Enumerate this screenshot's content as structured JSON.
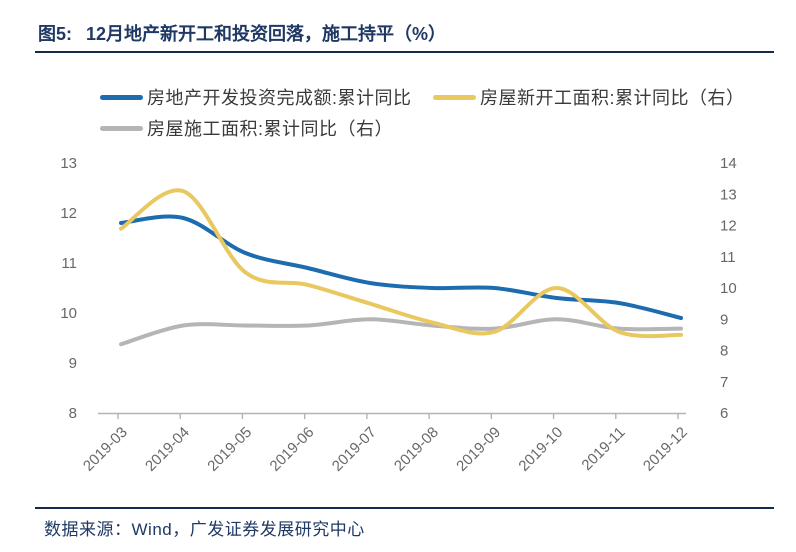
{
  "figure": {
    "label": "图5:",
    "title": "12月地产新开工和投资回落，施工持平（%）"
  },
  "footer": {
    "source": "数据来源：Wind，广发证券发展研究中心"
  },
  "colors": {
    "title_navy": "#1f3864",
    "divider_navy": "#17294d",
    "axis_gray": "#b3b3b3",
    "tick_label_gray": "#686868",
    "series_blue": "#1e6cb0",
    "series_yellow": "#e8c85f",
    "series_gray": "#b5b5b5"
  },
  "chart_data": {
    "type": "line",
    "title": "12月地产新开工和投资回落，施工持平（%）",
    "categories": [
      "2019-03",
      "2019-04",
      "2019-05",
      "2019-06",
      "2019-07",
      "2019-08",
      "2019-09",
      "2019-10",
      "2019-11",
      "2019-12"
    ],
    "series": [
      {
        "name": "房地产开发投资完成额:累计同比",
        "axis": "left",
        "color": "#1e6cb0",
        "values": [
          11.8,
          11.9,
          11.2,
          10.9,
          10.6,
          10.5,
          10.5,
          10.3,
          10.2,
          9.9
        ]
      },
      {
        "name": "房屋新开工面积:累计同比（右）",
        "axis": "right",
        "color": "#e8c85f",
        "values": [
          11.9,
          13.1,
          10.5,
          10.1,
          9.5,
          8.9,
          8.6,
          10.0,
          8.6,
          8.5
        ]
      },
      {
        "name": "房屋施工面积:累计同比（右）",
        "axis": "right",
        "color": "#b5b5b5",
        "values": [
          8.2,
          8.8,
          8.8,
          8.8,
          9.0,
          8.8,
          8.7,
          9.0,
          8.7,
          8.7
        ]
      }
    ],
    "left_axis": {
      "min": 8,
      "max": 13,
      "ticks": [
        13,
        12,
        11,
        10,
        9,
        8
      ]
    },
    "right_axis": {
      "min": 6,
      "max": 14,
      "ticks": [
        14,
        13,
        12,
        11,
        10,
        9,
        8,
        7,
        6
      ]
    },
    "xlabel": "",
    "ylabel": "",
    "grid": false,
    "legend_position": "top",
    "line_smoothing": true,
    "draw_order": [
      0,
      2,
      1
    ]
  }
}
